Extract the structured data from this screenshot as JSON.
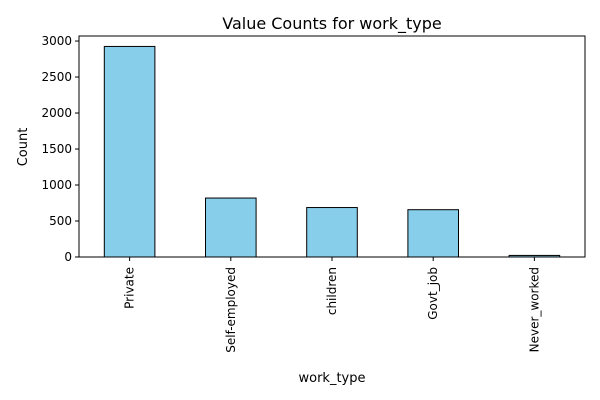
{
  "chart_data": {
    "type": "bar",
    "title": "Value Counts for work_type",
    "xlabel": "work_type",
    "ylabel": "Count",
    "categories": [
      "Private",
      "Self-employed",
      "children",
      "Govt_job",
      "Never_worked"
    ],
    "values": [
      2925,
      819,
      687,
      657,
      22
    ],
    "ylim": [
      0,
      3070
    ],
    "yticks": [
      0,
      500,
      1000,
      1500,
      2000,
      2500,
      3000
    ],
    "grid": false,
    "legend": "none",
    "bar_color": "#87ceeb",
    "edge_color": "#000000"
  }
}
